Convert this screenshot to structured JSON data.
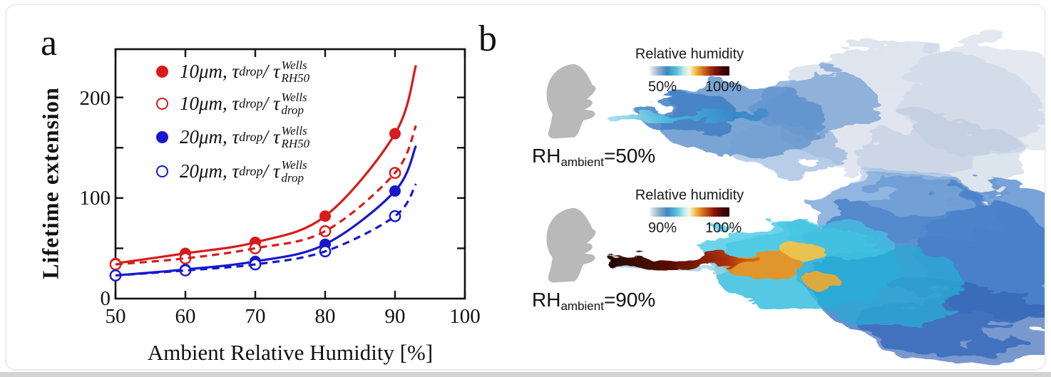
{
  "panel_a": {
    "label": "a",
    "chart_data": {
      "type": "line",
      "title": "",
      "xlabel": "Ambient Relative Humidity [%]",
      "ylabel": "Lifetime extension",
      "xlim": [
        50,
        100
      ],
      "ylim": [
        0,
        248
      ],
      "xticks": [
        50,
        60,
        70,
        80,
        90,
        100
      ],
      "yticks_labeled": [
        0,
        100,
        200
      ],
      "yticks_edge": [
        50,
        100,
        150,
        200
      ],
      "grid": false,
      "legend_position": "upper-left-inside",
      "x": [
        50,
        60,
        70,
        80,
        90
      ],
      "series": [
        {
          "name": "10μm, τdrop/τWells_RH50",
          "color": "#d81b1b",
          "marker": "filled",
          "line": "solid",
          "values": [
            35,
            45,
            56,
            82,
            164
          ],
          "curve_end": {
            "x": 93,
            "y": 232
          },
          "legend": {
            "a": "10μm, τ",
            "a_sub": "drop",
            "b": "/ τ",
            "sup": "Wells",
            "sub": "RH50"
          }
        },
        {
          "name": "10μm, τdrop/τWells_drop",
          "color": "#d81b1b",
          "marker": "open",
          "line": "dashed",
          "values": [
            34,
            40,
            50,
            67,
            125
          ],
          "curve_end": {
            "x": 93,
            "y": 172
          },
          "legend": {
            "a": "10μm, τ",
            "a_sub": "drop",
            "b": "/ τ",
            "sup": "Wells",
            "sub": "drop"
          }
        },
        {
          "name": "20μm, τdrop/τWells_RH50",
          "color": "#1717cf",
          "marker": "filled",
          "line": "solid",
          "values": [
            23,
            29,
            37,
            54,
            107
          ],
          "curve_end": {
            "x": 93,
            "y": 152
          },
          "legend": {
            "a": "20μm, τ",
            "a_sub": "drop",
            "b": "/ τ",
            "sup": "Wells",
            "sub": "RH50"
          }
        },
        {
          "name": "20μm, τdrop/τWells_drop",
          "color": "#1717cf",
          "marker": "open",
          "line": "dashed",
          "values": [
            23,
            28,
            34,
            47,
            82
          ],
          "curve_end": {
            "x": 93,
            "y": 114
          },
          "legend": {
            "a": "20μm, τ",
            "a_sub": "drop",
            "b": "/ τ",
            "sup": "Wells",
            "sub": "drop"
          }
        }
      ]
    },
    "xtick_labels": [
      "50",
      "60",
      "70",
      "80",
      "90",
      "100"
    ],
    "ytick_labels": [
      "0",
      "100",
      "200"
    ]
  },
  "panel_b": {
    "label": "b",
    "colorbar": {
      "stops": [
        [
          0,
          "#f3f3f3"
        ],
        [
          10,
          "#9db7cf"
        ],
        [
          22,
          "#3e86c2"
        ],
        [
          34,
          "#55c2dd"
        ],
        [
          44,
          "#c9ecee"
        ],
        [
          50,
          "#f7f3e4"
        ],
        [
          58,
          "#f2b83c"
        ],
        [
          68,
          "#d2661a"
        ],
        [
          80,
          "#8c1a08"
        ],
        [
          92,
          "#420508"
        ],
        [
          100,
          "#2c0406"
        ]
      ]
    },
    "sims": [
      {
        "colorbar_title": "Relative humidity",
        "min_label": "50%",
        "max_label": "100%",
        "rh_prefix": "RH",
        "rh_sub": "ambient",
        "rh_value": "=50%"
      },
      {
        "colorbar_title": "Relative humidity",
        "min_label": "90%",
        "max_label": "100%",
        "rh_prefix": "RH",
        "rh_sub": "ambient",
        "rh_value": "=90%"
      }
    ],
    "head_color": "#b9b9b9"
  }
}
